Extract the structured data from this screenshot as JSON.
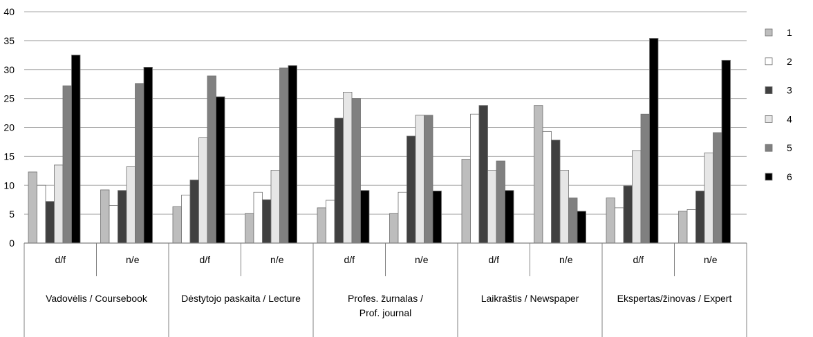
{
  "chart_data": {
    "type": "bar",
    "title": "",
    "xlabel": "",
    "ylabel": "",
    "ylim": [
      0,
      40
    ],
    "yticks": [
      "0",
      "5",
      "10",
      "15",
      "20",
      "25",
      "30",
      "35",
      "40"
    ],
    "grid": true,
    "legend_position": "right",
    "categories": [
      "d/f",
      "n/e",
      "d/f",
      "n/e",
      "d/f",
      "n/e",
      "d/f",
      "n/e",
      "d/f",
      "n/e"
    ],
    "groups": [
      {
        "label": "Vadovėlis / Coursebook",
        "lines": [
          "Vadovėlis / Coursebook"
        ]
      },
      {
        "label": "Dėstytojo paskaita / Lecture",
        "lines": [
          "Dėstytojo paskaita / Lecture"
        ]
      },
      {
        "label": "Profes. žurnalas / Prof. journal",
        "lines": [
          "Profes. žurnalas /",
          "Prof. journal"
        ]
      },
      {
        "label": "Laikraštis / Newspaper",
        "lines": [
          "Laikraštis / Newspaper"
        ]
      },
      {
        "label": "Ekspertas/žinovas / Expert",
        "lines": [
          "Ekspertas/žinovas / Expert"
        ]
      }
    ],
    "series": [
      {
        "name": "1",
        "color": "#bdbdbd",
        "values": [
          12.3,
          9.2,
          6.3,
          5.1,
          6.1,
          5.1,
          14.5,
          23.8,
          7.8,
          5.5
        ]
      },
      {
        "name": "2",
        "color": "#ffffff",
        "values": [
          10.0,
          6.5,
          8.3,
          8.8,
          7.4,
          8.8,
          22.3,
          19.3,
          6.1,
          5.8
        ]
      },
      {
        "name": "3",
        "color": "#404040",
        "values": [
          7.2,
          9.1,
          10.9,
          7.5,
          21.6,
          18.5,
          23.8,
          17.8,
          9.9,
          9.0
        ]
      },
      {
        "name": "4",
        "color": "#e6e6e6",
        "values": [
          13.5,
          13.2,
          18.2,
          12.6,
          26.1,
          22.1,
          12.6,
          12.6,
          16.0,
          15.6
        ]
      },
      {
        "name": "5",
        "color": "#808080",
        "values": [
          27.2,
          27.6,
          28.9,
          30.3,
          25.0,
          22.1,
          14.2,
          7.8,
          22.3,
          19.1
        ]
      },
      {
        "name": "6",
        "color": "#000000",
        "values": [
          32.5,
          30.4,
          25.3,
          30.7,
          9.1,
          9.0,
          9.1,
          5.5,
          35.4,
          31.6
        ]
      }
    ]
  }
}
